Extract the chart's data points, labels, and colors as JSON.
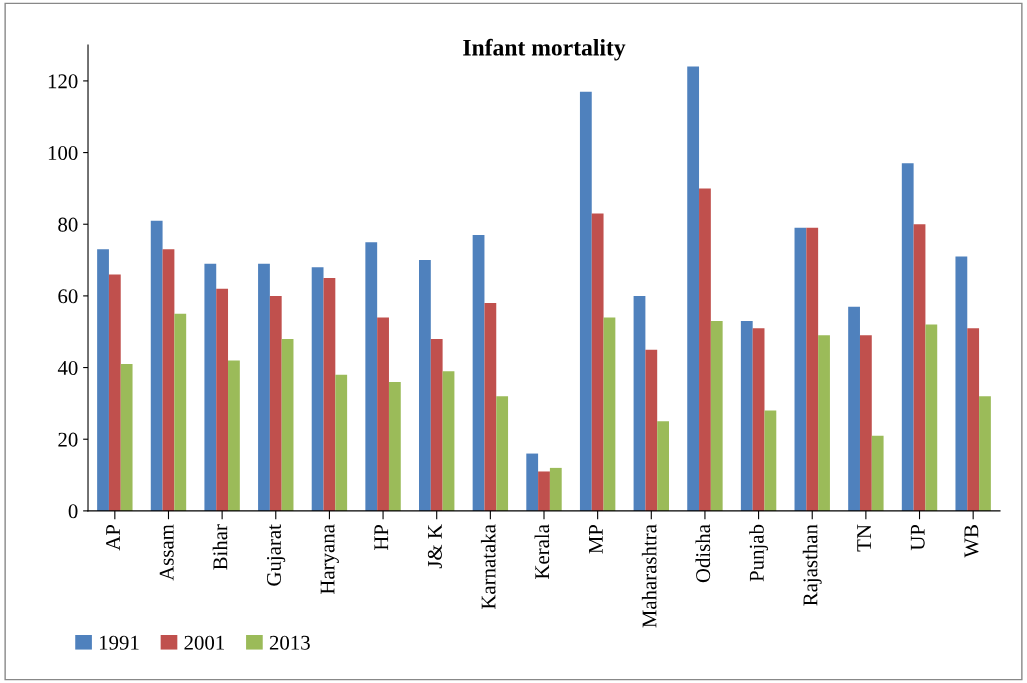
{
  "chart_data": {
    "type": "bar",
    "title": "Infant mortality",
    "categories": [
      "AP",
      "Assam",
      "Bihar",
      "Gujarat",
      "Haryana",
      "HP",
      "J& K",
      "Karnataka",
      "Kerala",
      "MP",
      "Maharashtra",
      "Odisha",
      "Punjab",
      "Rajasthan",
      "TN",
      "UP",
      "WB"
    ],
    "series": [
      {
        "name": "1991",
        "color": "#4f81bd",
        "values": [
          73,
          81,
          69,
          69,
          68,
          75,
          70,
          77,
          16,
          117,
          60,
          124,
          53,
          79,
          57,
          97,
          71
        ]
      },
      {
        "name": "2001",
        "color": "#c0504d",
        "values": [
          66,
          73,
          62,
          60,
          65,
          54,
          48,
          58,
          11,
          83,
          45,
          90,
          51,
          79,
          49,
          80,
          51
        ]
      },
      {
        "name": "2013",
        "color": "#9bbb59",
        "values": [
          41,
          55,
          42,
          48,
          38,
          36,
          39,
          32,
          12,
          54,
          25,
          53,
          28,
          49,
          21,
          52,
          32
        ]
      }
    ],
    "ylim": [
      0,
      130
    ],
    "yticks": [
      0,
      20,
      40,
      60,
      80,
      100,
      120
    ],
    "grid": false,
    "legend": "bottom left"
  }
}
